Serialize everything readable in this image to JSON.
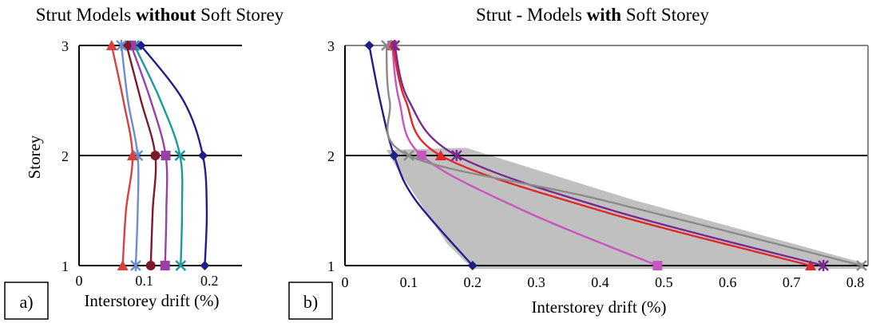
{
  "chart_data": [
    {
      "panel_label": "a)",
      "type": "line",
      "title_parts": [
        "Strut Models ",
        "without",
        " Soft Storey"
      ],
      "xlabel": "Interstorey drift (%)",
      "ylabel": "Storey",
      "xlim": [
        0,
        0.25
      ],
      "ylim": [
        1,
        3
      ],
      "xticks": [
        "0",
        "0.1",
        "0.2"
      ],
      "xtick_values": [
        0,
        0.1,
        0.2
      ],
      "yticks": [
        "1",
        "2",
        "3"
      ],
      "ytick_values": [
        1,
        2,
        3
      ],
      "grid": "horizontal lines at storeys",
      "series": [
        {
          "color": "#1f1f8a",
          "marker": "diamond",
          "points": [
            [
              0.193,
              1
            ],
            [
              0.196,
              1.5
            ],
            [
              0.19,
              2
            ],
            [
              0.16,
              2.5
            ],
            [
              0.095,
              3
            ]
          ]
        },
        {
          "color": "#1a9aa0",
          "marker": "cross",
          "points": [
            [
              0.156,
              1
            ],
            [
              0.158,
              1.5
            ],
            [
              0.155,
              2
            ],
            [
              0.125,
              2.5
            ],
            [
              0.085,
              3
            ]
          ]
        },
        {
          "color": "#9b3fa8",
          "marker": "square",
          "points": [
            [
              0.132,
              1
            ],
            [
              0.134,
              1.5
            ],
            [
              0.133,
              2
            ],
            [
              0.11,
              2.5
            ],
            [
              0.08,
              3
            ]
          ]
        },
        {
          "color": "#7a1a2a",
          "marker": "circle",
          "points": [
            [
              0.11,
              1
            ],
            [
              0.113,
              1.5
            ],
            [
              0.117,
              2
            ],
            [
              0.095,
              2.5
            ],
            [
              0.073,
              3
            ]
          ]
        },
        {
          "color": "#6a8fd0",
          "marker": "star",
          "points": [
            [
              0.087,
              1
            ],
            [
              0.09,
              1.5
            ],
            [
              0.09,
              2
            ],
            [
              0.075,
              2.5
            ],
            [
              0.065,
              3
            ]
          ]
        },
        {
          "color": "#d94040",
          "marker": "triangle",
          "points": [
            [
              0.067,
              1
            ],
            [
              0.072,
              1.5
            ],
            [
              0.082,
              2
            ],
            [
              0.068,
              2.5
            ],
            [
              0.05,
              3
            ]
          ]
        }
      ]
    },
    {
      "panel_label": "b)",
      "type": "line",
      "title_parts": [
        "Strut - Models ",
        "with",
        " Soft Storey"
      ],
      "xlabel": "Interstorey drift (%)",
      "ylabel": "",
      "xlim": [
        0,
        0.82
      ],
      "ylim": [
        1,
        3
      ],
      "xticks": [
        "0",
        "0.1",
        "0.2",
        "0.3",
        "0.4",
        "0.5",
        "0.6",
        "0.7",
        "0.8"
      ],
      "xtick_values": [
        0,
        0.1,
        0.2,
        0.3,
        0.4,
        0.5,
        0.6,
        0.7,
        0.8
      ],
      "yticks": [
        "1",
        "2",
        "3"
      ],
      "ytick_values": [
        1,
        2,
        3
      ],
      "shaded_band": {
        "color": "#c0c0c0",
        "polygon": [
          [
            0.065,
            2.05
          ],
          [
            0.19,
            2.07
          ],
          [
            0.45,
            1.6
          ],
          [
            0.815,
            1.02
          ],
          [
            0.815,
            0.97
          ],
          [
            0.2,
            0.97
          ],
          [
            0.16,
            1.2
          ],
          [
            0.08,
            1.9
          ]
        ]
      },
      "series": [
        {
          "color": "#1f1f8a",
          "marker": "diamond",
          "points": [
            [
              0.2,
              1
            ],
            [
              0.11,
              1.6
            ],
            [
              0.077,
              2
            ],
            [
              0.055,
              2.5
            ],
            [
              0.038,
              3
            ]
          ]
        },
        {
          "color": "#c855c0",
          "marker": "square",
          "points": [
            [
              0.49,
              1
            ],
            [
              0.28,
              1.5
            ],
            [
              0.12,
              2
            ],
            [
              0.085,
              2.5
            ],
            [
              0.074,
              3
            ]
          ]
        },
        {
          "color": "#e02828",
          "marker": "triangle",
          "points": [
            [
              0.73,
              1
            ],
            [
              0.4,
              1.5
            ],
            [
              0.15,
              2
            ],
            [
              0.095,
              2.5
            ],
            [
              0.075,
              3
            ]
          ]
        },
        {
          "color": "#7a2890",
          "marker": "star",
          "points": [
            [
              0.75,
              1
            ],
            [
              0.42,
              1.5
            ],
            [
              0.175,
              2
            ],
            [
              0.1,
              2.5
            ],
            [
              0.078,
              3
            ]
          ]
        },
        {
          "color": "#8a8a8a",
          "marker": "cross",
          "points": [
            [
              0.81,
              1
            ],
            [
              0.4,
              1.6
            ],
            [
              0.1,
              2
            ],
            [
              0.07,
              2.5
            ],
            [
              0.065,
              3
            ]
          ]
        }
      ]
    }
  ]
}
